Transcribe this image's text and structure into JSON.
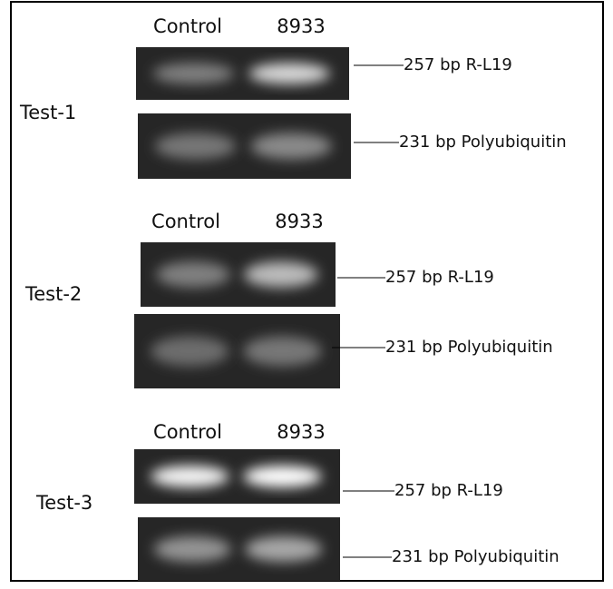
{
  "tests": [
    {
      "label": "Test-1",
      "columns": [
        "Control",
        "8933"
      ],
      "bands": [
        "257 bp R-L19",
        "231 bp Polyubiquitin"
      ]
    },
    {
      "label": "Test-2",
      "columns": [
        "Control",
        "8933"
      ],
      "bands": [
        "257 bp R-L19",
        "231 bp Polyubiquitin"
      ]
    },
    {
      "label": "Test-3",
      "columns": [
        "Control",
        "8933"
      ],
      "bands": [
        "257 bp R-L19",
        "231 bp Polyubiquitin"
      ]
    }
  ]
}
